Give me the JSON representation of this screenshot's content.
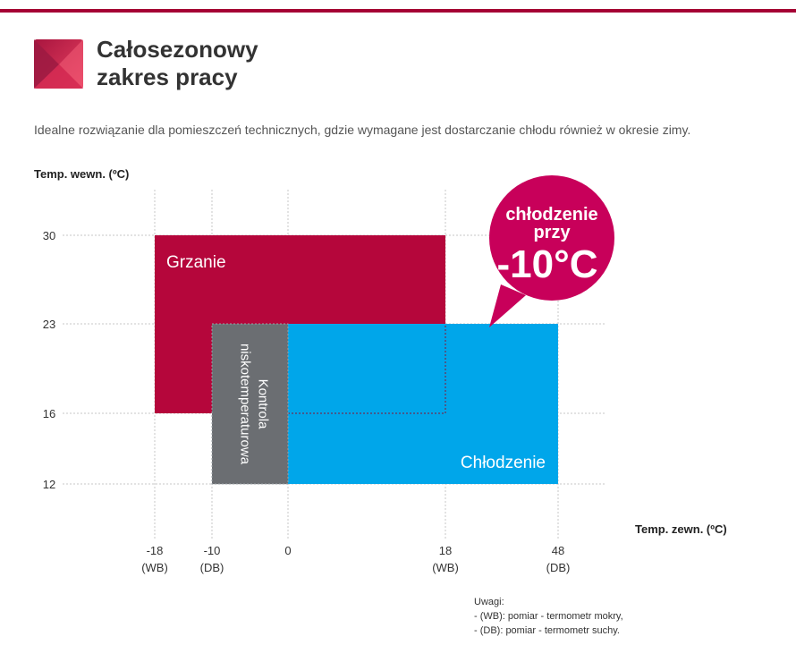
{
  "header": {
    "title_line1": "Całosezonowy",
    "title_line2": "zakres pracy",
    "subtitle": "Idealne rozwiązanie dla pomieszczeń technicznych, gdzie wymagane jest dostarczanie chłodu również w okresie zimy.",
    "brand_color": "#a50034",
    "logo_icon": "pink-square-logo-icon"
  },
  "chart_data": {
    "type": "area",
    "ylabel": "Temp. wewn. (ºC)",
    "xlabel": "Temp. zewn. (ºC)",
    "x_ticks": [
      {
        "value": -18,
        "label": "-18",
        "sublabel": "(WB)"
      },
      {
        "value": -10,
        "label": "-10",
        "sublabel": "(DB)"
      },
      {
        "value": 0,
        "label": "0",
        "sublabel": ""
      },
      {
        "value": 18,
        "label": "18",
        "sublabel": "(WB)"
      },
      {
        "value": 48,
        "label": "48",
        "sublabel": "(DB)"
      }
    ],
    "y_ticks": [
      {
        "value": 30,
        "label": "30"
      },
      {
        "value": 23,
        "label": "23"
      },
      {
        "value": 16,
        "label": "16"
      },
      {
        "value": 12,
        "label": "12"
      }
    ],
    "regions": [
      {
        "name": "Grzanie",
        "label": "Grzanie",
        "x": [
          -18,
          18
        ],
        "y": [
          16,
          30
        ],
        "color": "#b5063b"
      },
      {
        "name": "Chłodzenie",
        "label": "Chłodzenie",
        "x": [
          0,
          48
        ],
        "y": [
          12,
          23
        ],
        "color": "#00a6ea"
      },
      {
        "name": "Kontrola niskotemperaturowa",
        "label_line1": "Kontrola",
        "label_line2": "niskotemperaturowa",
        "x": [
          -10,
          0
        ],
        "y": [
          12,
          23
        ],
        "color": "#6b6e72"
      }
    ],
    "grid": true,
    "callout": {
      "line1": "chłodzenie",
      "line2": "przy",
      "line3": "-10°C",
      "color": "#c8005a"
    }
  },
  "notes": {
    "heading": "Uwagi:",
    "line1": "- (WB): pomiar - termometr mokry,",
    "line2": "- (DB): pomiar - termometr suchy."
  }
}
